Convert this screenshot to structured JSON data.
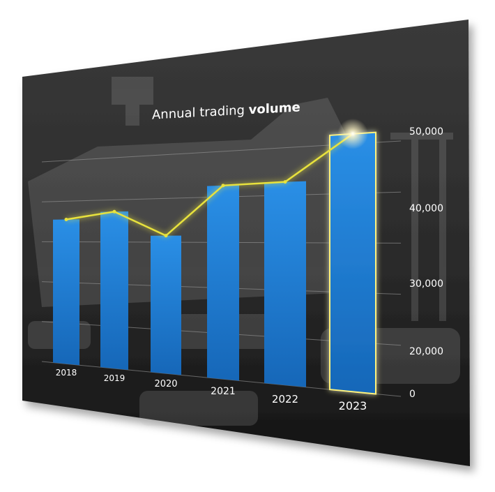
{
  "colors": {
    "panel": "#2f2f2f",
    "bar": "#1a7ed6",
    "line": "#e8e23c",
    "text": "#ffffff"
  },
  "chart_data": {
    "type": "bar",
    "title_prefix": "Annual trading ",
    "title_emphasis": "volume",
    "categories": [
      "2018",
      "2019",
      "2020",
      "2021",
      "2022",
      "2023"
    ],
    "values": [
      35500,
      37200,
      31500,
      42500,
      42800,
      52000
    ],
    "line_values": [
      35500,
      37200,
      31500,
      42500,
      42800,
      52000
    ],
    "highlight_category": "2023",
    "yticks": [
      "50,000",
      "40,000",
      "30,000",
      "20,000",
      "0"
    ],
    "grid": true,
    "legend": "none"
  }
}
